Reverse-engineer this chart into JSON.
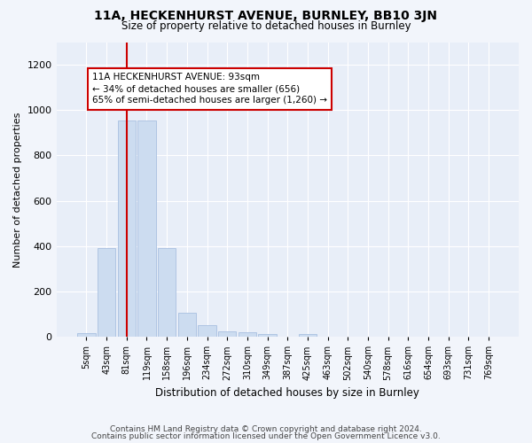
{
  "title1": "11A, HECKENHURST AVENUE, BURNLEY, BB10 3JN",
  "title2": "Size of property relative to detached houses in Burnley",
  "xlabel": "Distribution of detached houses by size in Burnley",
  "ylabel": "Number of detached properties",
  "bar_labels": [
    "5sqm",
    "43sqm",
    "81sqm",
    "119sqm",
    "158sqm",
    "196sqm",
    "234sqm",
    "272sqm",
    "310sqm",
    "349sqm",
    "387sqm",
    "425sqm",
    "463sqm",
    "502sqm",
    "540sqm",
    "578sqm",
    "616sqm",
    "654sqm",
    "693sqm",
    "731sqm",
    "769sqm"
  ],
  "bar_values": [
    15,
    390,
    955,
    955,
    390,
    105,
    50,
    25,
    20,
    13,
    0,
    13,
    0,
    0,
    0,
    0,
    0,
    0,
    0,
    0,
    0
  ],
  "bar_color": "#ccdcf0",
  "bar_edgecolor": "#a8c0e0",
  "vline_x": 2.0,
  "vline_color": "#cc0000",
  "annotation_text": "11A HECKENHURST AVENUE: 93sqm\n← 34% of detached houses are smaller (656)\n65% of semi-detached houses are larger (1,260) →",
  "annotation_box_color": "#ffffff",
  "annotation_box_edgecolor": "#cc0000",
  "ylim": [
    0,
    1300
  ],
  "yticks": [
    0,
    200,
    400,
    600,
    800,
    1000,
    1200
  ],
  "footer1": "Contains HM Land Registry data © Crown copyright and database right 2024.",
  "footer2": "Contains public sector information licensed under the Open Government Licence v3.0.",
  "bg_color": "#f2f5fb",
  "plot_bg_color": "#e8eef8",
  "grid_color": "#ffffff"
}
